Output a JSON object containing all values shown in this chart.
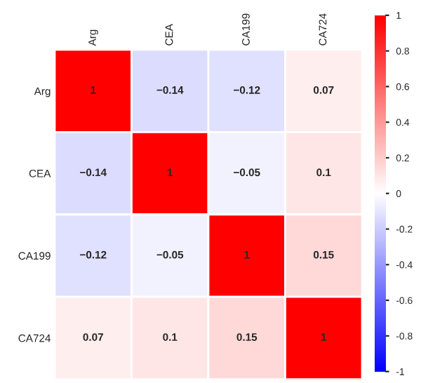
{
  "chart_data": {
    "type": "heatmap",
    "categories": [
      "Arg",
      "CEA",
      "CA199",
      "CA724"
    ],
    "y_categories": [
      "Arg",
      "CEA",
      "CA199",
      "CA724"
    ],
    "cells": [
      [
        1,
        -0.14,
        -0.12,
        0.07
      ],
      [
        -0.14,
        1,
        -0.05,
        0.1
      ],
      [
        -0.12,
        -0.05,
        1,
        0.15
      ],
      [
        0.07,
        0.1,
        0.15,
        1
      ]
    ],
    "cell_labels": [
      [
        "1",
        "−0.14",
        "−0.12",
        "0.07"
      ],
      [
        "−0.14",
        "1",
        "−0.05",
        "0.1"
      ],
      [
        "−0.12",
        "−0.05",
        "1",
        "0.15"
      ],
      [
        "0.07",
        "0.1",
        "0.15",
        "1"
      ]
    ],
    "clim": [
      -1,
      1
    ],
    "cticks": [
      -1,
      -0.8,
      -0.6,
      -0.4,
      -0.2,
      0,
      0.2,
      0.4,
      0.6,
      0.8,
      1
    ]
  }
}
